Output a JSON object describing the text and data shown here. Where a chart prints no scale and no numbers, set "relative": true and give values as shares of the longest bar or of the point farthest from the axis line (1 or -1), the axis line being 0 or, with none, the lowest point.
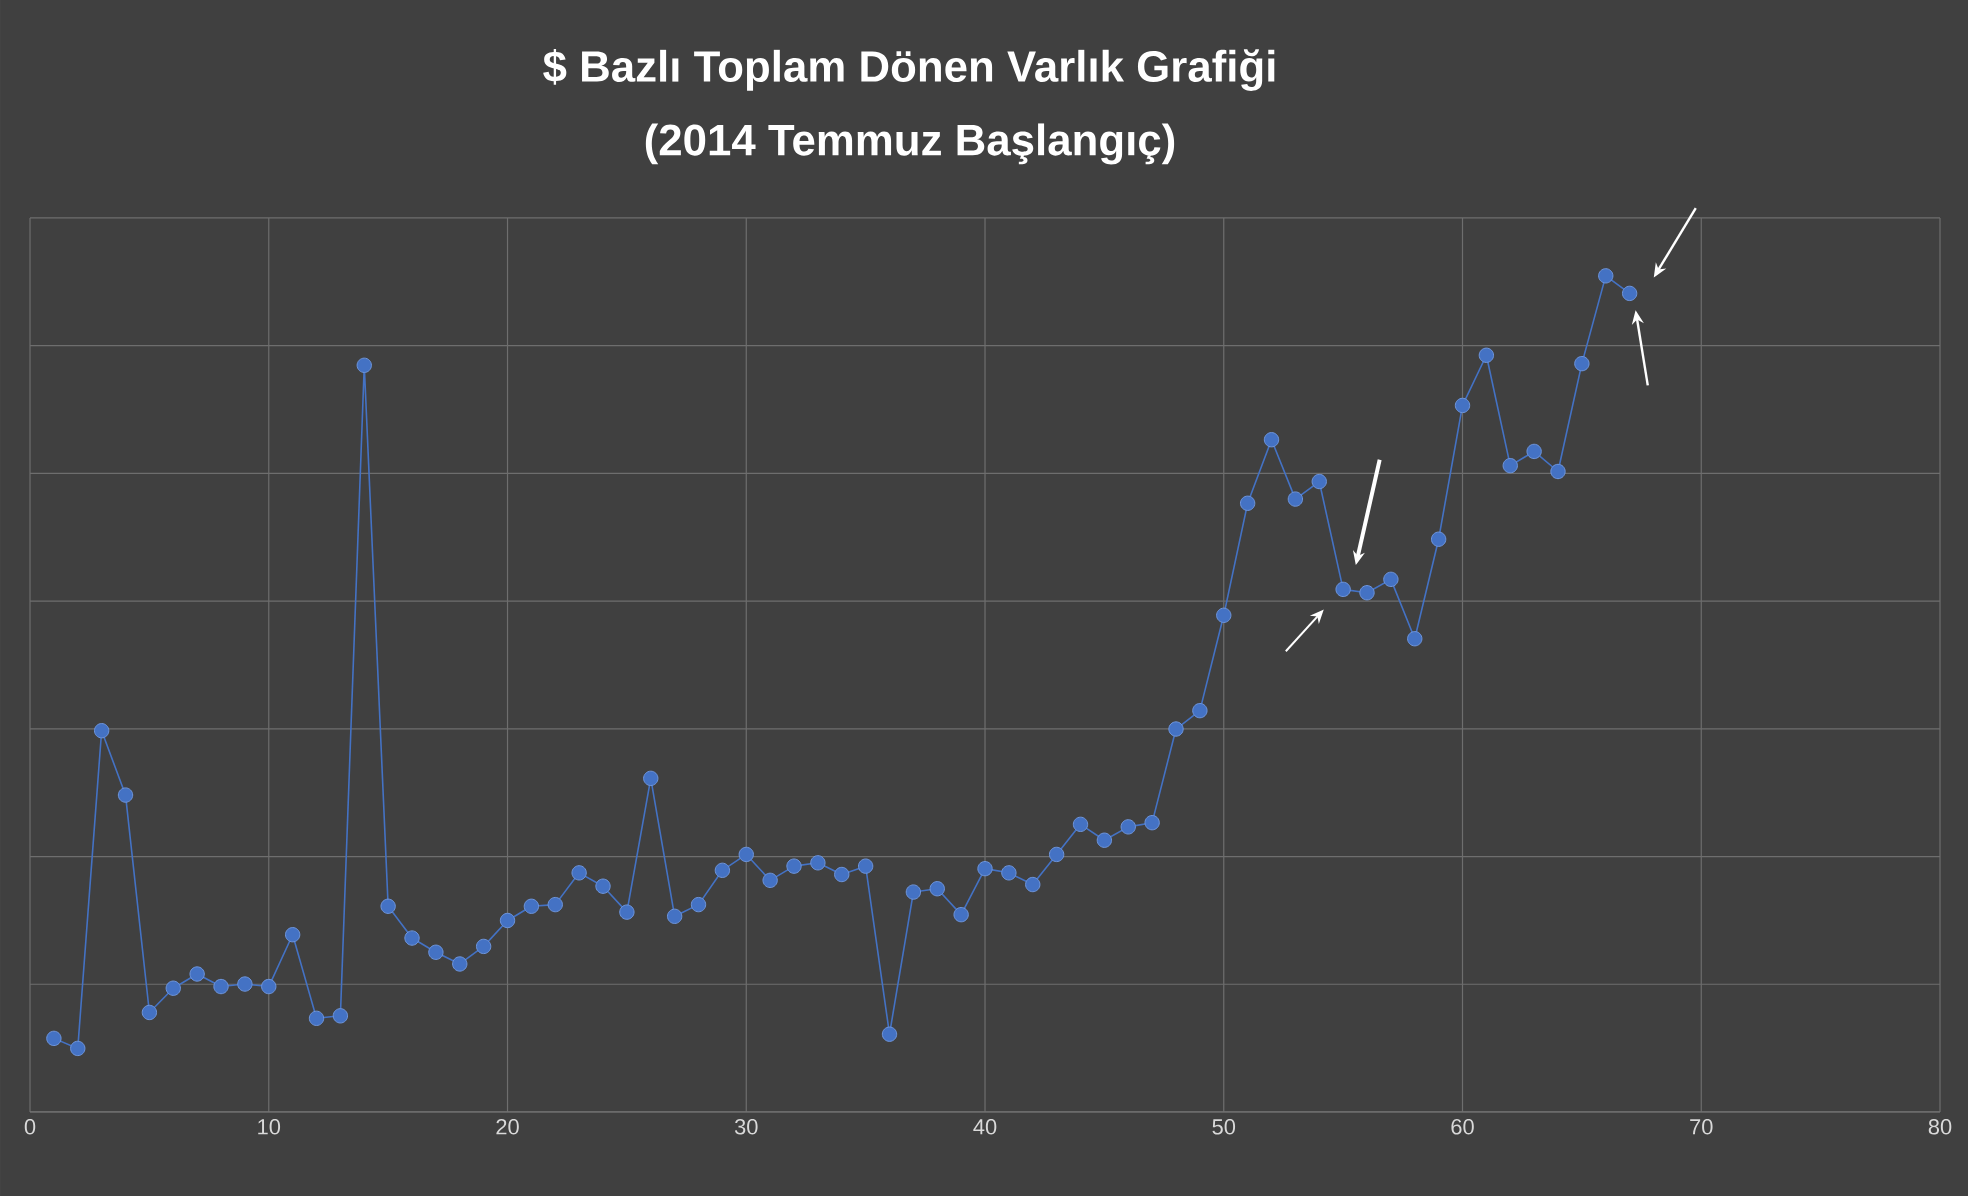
{
  "chart_data": {
    "type": "line",
    "title": "$ Bazlı Toplam Dönen Varlık Grafiği",
    "subtitle": "(2014 Temmuz Başlangıç)",
    "relative": true,
    "xlim": [
      0,
      80
    ],
    "xticks": [
      0,
      10,
      20,
      30,
      40,
      50,
      60,
      70,
      80
    ],
    "grid": true,
    "marker": "circle",
    "line_style": "solid",
    "series": [
      {
        "color": "#4472c4",
        "x": [
          1,
          2,
          3,
          4,
          5,
          6,
          7,
          8,
          9,
          10,
          11,
          12,
          13,
          14,
          15,
          16,
          17,
          18,
          19,
          20,
          21,
          22,
          23,
          24,
          25,
          26,
          27,
          28,
          29,
          30,
          31,
          32,
          33,
          34,
          35,
          36,
          37,
          38,
          39,
          40,
          41,
          42,
          43,
          44,
          45,
          46,
          47,
          48,
          49,
          50,
          51,
          52,
          53,
          54,
          55,
          56,
          57,
          58,
          59,
          60,
          61,
          62,
          63,
          64,
          65,
          66,
          67
        ],
        "values": [
          0.088,
          0.076,
          0.456,
          0.379,
          0.119,
          0.148,
          0.165,
          0.15,
          0.153,
          0.15,
          0.212,
          0.112,
          0.115,
          0.893,
          0.246,
          0.208,
          0.191,
          0.177,
          0.198,
          0.229,
          0.246,
          0.248,
          0.286,
          0.27,
          0.239,
          0.399,
          0.234,
          0.248,
          0.289,
          0.308,
          0.277,
          0.294,
          0.298,
          0.284,
          0.294,
          0.093,
          0.263,
          0.267,
          0.236,
          0.291,
          0.286,
          0.272,
          0.308,
          0.344,
          0.325,
          0.341,
          0.346,
          0.458,
          0.48,
          0.594,
          0.728,
          0.804,
          0.733,
          0.754,
          0.625,
          0.621,
          0.637,
          0.566,
          0.685,
          0.845,
          0.905,
          0.773,
          0.79,
          0.766,
          0.895,
          1,
          0.979
        ]
      }
    ]
  }
}
